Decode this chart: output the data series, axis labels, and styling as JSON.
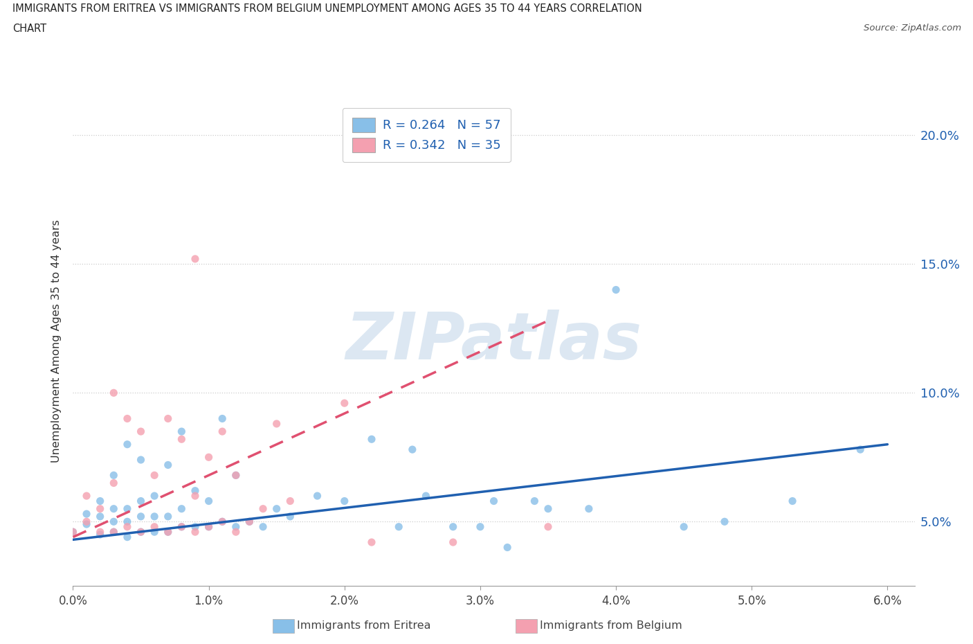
{
  "title_line1": "IMMIGRANTS FROM ERITREA VS IMMIGRANTS FROM BELGIUM UNEMPLOYMENT AMONG AGES 35 TO 44 YEARS CORRELATION",
  "title_line2": "CHART",
  "source_text": "Source: ZipAtlas.com",
  "ylabel": "Unemployment Among Ages 35 to 44 years",
  "watermark": "ZIPatlas",
  "legend_eritrea_R": "R = 0.264",
  "legend_eritrea_N": "N = 57",
  "legend_belgium_R": "R = 0.342",
  "legend_belgium_N": "N = 35",
  "legend_eritrea_bottom": "Immigrants from Eritrea",
  "legend_belgium_bottom": "Immigrants from Belgium",
  "xlim": [
    0.0,
    0.062
  ],
  "ylim": [
    0.025,
    0.215
  ],
  "xticks": [
    0.0,
    0.01,
    0.02,
    0.03,
    0.04,
    0.05,
    0.06
  ],
  "yticks": [
    0.05,
    0.1,
    0.15,
    0.2
  ],
  "color_eritrea_scatter": "#88bfe8",
  "color_belgium_scatter": "#f4a0b0",
  "color_trendline_eritrea": "#2060b0",
  "color_trendline_belgium": "#e05070",
  "eritrea_x": [
    0.0,
    0.001,
    0.001,
    0.002,
    0.002,
    0.002,
    0.003,
    0.003,
    0.003,
    0.003,
    0.004,
    0.004,
    0.004,
    0.004,
    0.005,
    0.005,
    0.005,
    0.005,
    0.006,
    0.006,
    0.006,
    0.007,
    0.007,
    0.007,
    0.008,
    0.008,
    0.008,
    0.009,
    0.009,
    0.01,
    0.01,
    0.011,
    0.011,
    0.012,
    0.012,
    0.013,
    0.014,
    0.015,
    0.016,
    0.018,
    0.02,
    0.022,
    0.024,
    0.025,
    0.026,
    0.028,
    0.03,
    0.031,
    0.032,
    0.034,
    0.035,
    0.038,
    0.04,
    0.045,
    0.048,
    0.053,
    0.058
  ],
  "eritrea_y": [
    0.046,
    0.049,
    0.053,
    0.045,
    0.052,
    0.058,
    0.046,
    0.05,
    0.055,
    0.068,
    0.044,
    0.05,
    0.055,
    0.08,
    0.046,
    0.052,
    0.058,
    0.074,
    0.046,
    0.052,
    0.06,
    0.046,
    0.052,
    0.072,
    0.048,
    0.055,
    0.085,
    0.048,
    0.062,
    0.048,
    0.058,
    0.05,
    0.09,
    0.048,
    0.068,
    0.05,
    0.048,
    0.055,
    0.052,
    0.06,
    0.058,
    0.082,
    0.048,
    0.078,
    0.06,
    0.048,
    0.048,
    0.058,
    0.04,
    0.058,
    0.055,
    0.055,
    0.14,
    0.048,
    0.05,
    0.058,
    0.078
  ],
  "belgium_x": [
    0.0,
    0.001,
    0.001,
    0.002,
    0.002,
    0.003,
    0.003,
    0.003,
    0.004,
    0.004,
    0.005,
    0.005,
    0.006,
    0.006,
    0.007,
    0.007,
    0.008,
    0.008,
    0.009,
    0.009,
    0.009,
    0.01,
    0.01,
    0.011,
    0.011,
    0.012,
    0.012,
    0.013,
    0.014,
    0.015,
    0.016,
    0.02,
    0.022,
    0.028,
    0.035
  ],
  "belgium_y": [
    0.046,
    0.05,
    0.06,
    0.046,
    0.055,
    0.046,
    0.065,
    0.1,
    0.048,
    0.09,
    0.046,
    0.085,
    0.048,
    0.068,
    0.046,
    0.09,
    0.048,
    0.082,
    0.046,
    0.06,
    0.152,
    0.048,
    0.075,
    0.05,
    0.085,
    0.046,
    0.068,
    0.05,
    0.055,
    0.088,
    0.058,
    0.096,
    0.042,
    0.042,
    0.048
  ],
  "eritrea_trend_x": [
    0.0,
    0.06
  ],
  "eritrea_trend_y": [
    0.043,
    0.08
  ],
  "belgium_trend_x": [
    0.0,
    0.035
  ],
  "belgium_trend_y": [
    0.044,
    0.128
  ]
}
